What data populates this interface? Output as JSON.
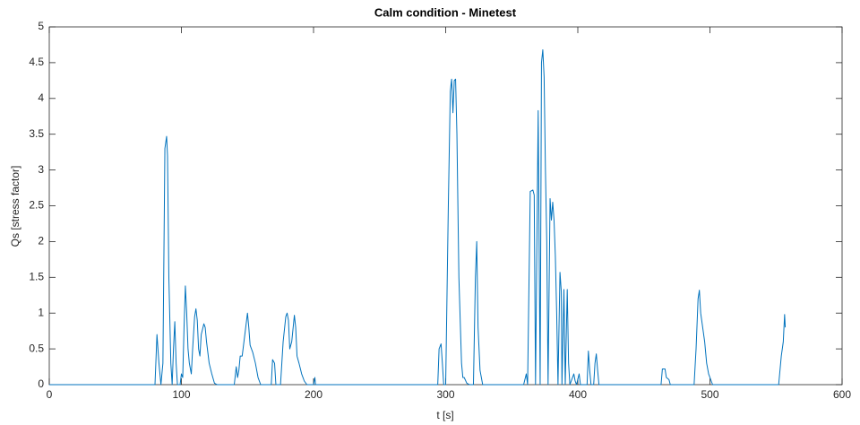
{
  "chart_data": {
    "type": "line",
    "title": "Calm condition - Minetest",
    "xlabel": "t [s]",
    "ylabel": "Qs [stress factor]",
    "color": "#0072bd",
    "xlim": [
      0,
      600
    ],
    "ylim": [
      0,
      5
    ],
    "xticks": [
      0,
      100,
      200,
      300,
      400,
      500,
      600
    ],
    "yticks": [
      0,
      0.5,
      1,
      1.5,
      2,
      2.5,
      3,
      3.5,
      4,
      4.5,
      5
    ],
    "x": [
      0,
      80,
      81.5,
      83,
      84.5,
      86,
      87.5,
      88.8,
      89.5,
      90.5,
      92,
      93,
      94,
      95,
      96,
      97,
      99,
      100,
      101,
      102,
      103,
      104,
      105,
      106,
      107.5,
      108.5,
      110,
      111,
      112,
      113,
      114,
      115,
      117,
      118,
      119,
      121,
      123,
      125,
      127,
      140,
      141.5,
      142.5,
      143.5,
      144.5,
      146,
      148,
      150,
      151,
      152,
      154,
      156,
      158,
      160,
      168,
      169,
      170.5,
      171.5,
      175,
      176,
      177,
      179,
      180,
      181,
      182,
      183.5,
      185.5,
      186.5,
      187.5,
      189,
      191,
      193,
      195,
      200,
      201,
      201.5,
      294,
      295,
      296.5,
      297.5,
      298.5,
      300,
      302,
      303.5,
      304.5,
      305.5,
      306.5,
      307.5,
      308.5,
      310,
      312,
      313,
      314,
      316,
      318,
      321,
      322.5,
      323.5,
      324.5,
      326,
      328,
      359,
      361,
      362,
      364,
      366,
      367,
      368,
      370,
      371.5,
      372.5,
      373.5,
      374.5,
      375.5,
      376.5,
      377.5,
      379,
      380,
      381,
      382,
      383,
      384,
      385,
      386.5,
      387.5,
      388,
      389.5,
      390.5,
      392,
      393,
      394,
      397,
      398,
      399,
      401,
      402,
      407,
      408,
      409,
      410,
      412,
      413,
      414,
      415,
      416,
      463,
      464,
      466,
      467,
      469,
      470,
      488,
      489.5,
      491,
      492,
      493,
      494.5,
      496,
      497.5,
      499,
      501,
      502,
      552,
      554,
      555.5,
      556.5,
      557
    ],
    "values": [
      0,
      0,
      0.7,
      0.3,
      0,
      0.3,
      3.3,
      3.47,
      3.2,
      1.5,
      0.3,
      0,
      0.5,
      0.88,
      0.3,
      0,
      0,
      0.15,
      0.1,
      0.8,
      1.38,
      1.0,
      0.5,
      0.3,
      0.15,
      0.5,
      0.95,
      1.06,
      0.9,
      0.5,
      0.4,
      0.7,
      0.85,
      0.8,
      0.6,
      0.3,
      0.15,
      0.02,
      0,
      0,
      0.25,
      0.1,
      0.2,
      0.4,
      0.4,
      0.7,
      1.0,
      0.8,
      0.55,
      0.45,
      0.3,
      0.1,
      0,
      0,
      0.35,
      0.3,
      0,
      0,
      0.3,
      0.6,
      0.95,
      1.0,
      0.9,
      0.5,
      0.6,
      0.97,
      0.8,
      0.4,
      0.3,
      0.15,
      0.05,
      0,
      0,
      0.1,
      0,
      0,
      0.5,
      0.57,
      0.3,
      0,
      0,
      2.5,
      4.1,
      4.27,
      3.8,
      4.25,
      4.27,
      3.5,
      1.5,
      0.3,
      0.1,
      0.1,
      0.02,
      0,
      0,
      1.5,
      2.0,
      0.8,
      0.2,
      0,
      0,
      0.15,
      0,
      2.7,
      2.72,
      2.65,
      0,
      3.83,
      0,
      4.5,
      4.68,
      4.3,
      3.0,
      2.0,
      0,
      2.6,
      2.3,
      2.55,
      2.3,
      1.8,
      1.0,
      0,
      1.57,
      1.3,
      0,
      1.33,
      0,
      1.33,
      0.3,
      0,
      0.15,
      0.05,
      0,
      0.15,
      0,
      0,
      0.47,
      0.2,
      0,
      0,
      0.3,
      0.43,
      0.2,
      0,
      0,
      0.22,
      0.22,
      0.1,
      0.07,
      0,
      0,
      0.5,
      1.2,
      1.32,
      1.0,
      0.8,
      0.6,
      0.3,
      0.15,
      0.05,
      0,
      0,
      0.4,
      0.6,
      0.98,
      0.8
    ]
  }
}
